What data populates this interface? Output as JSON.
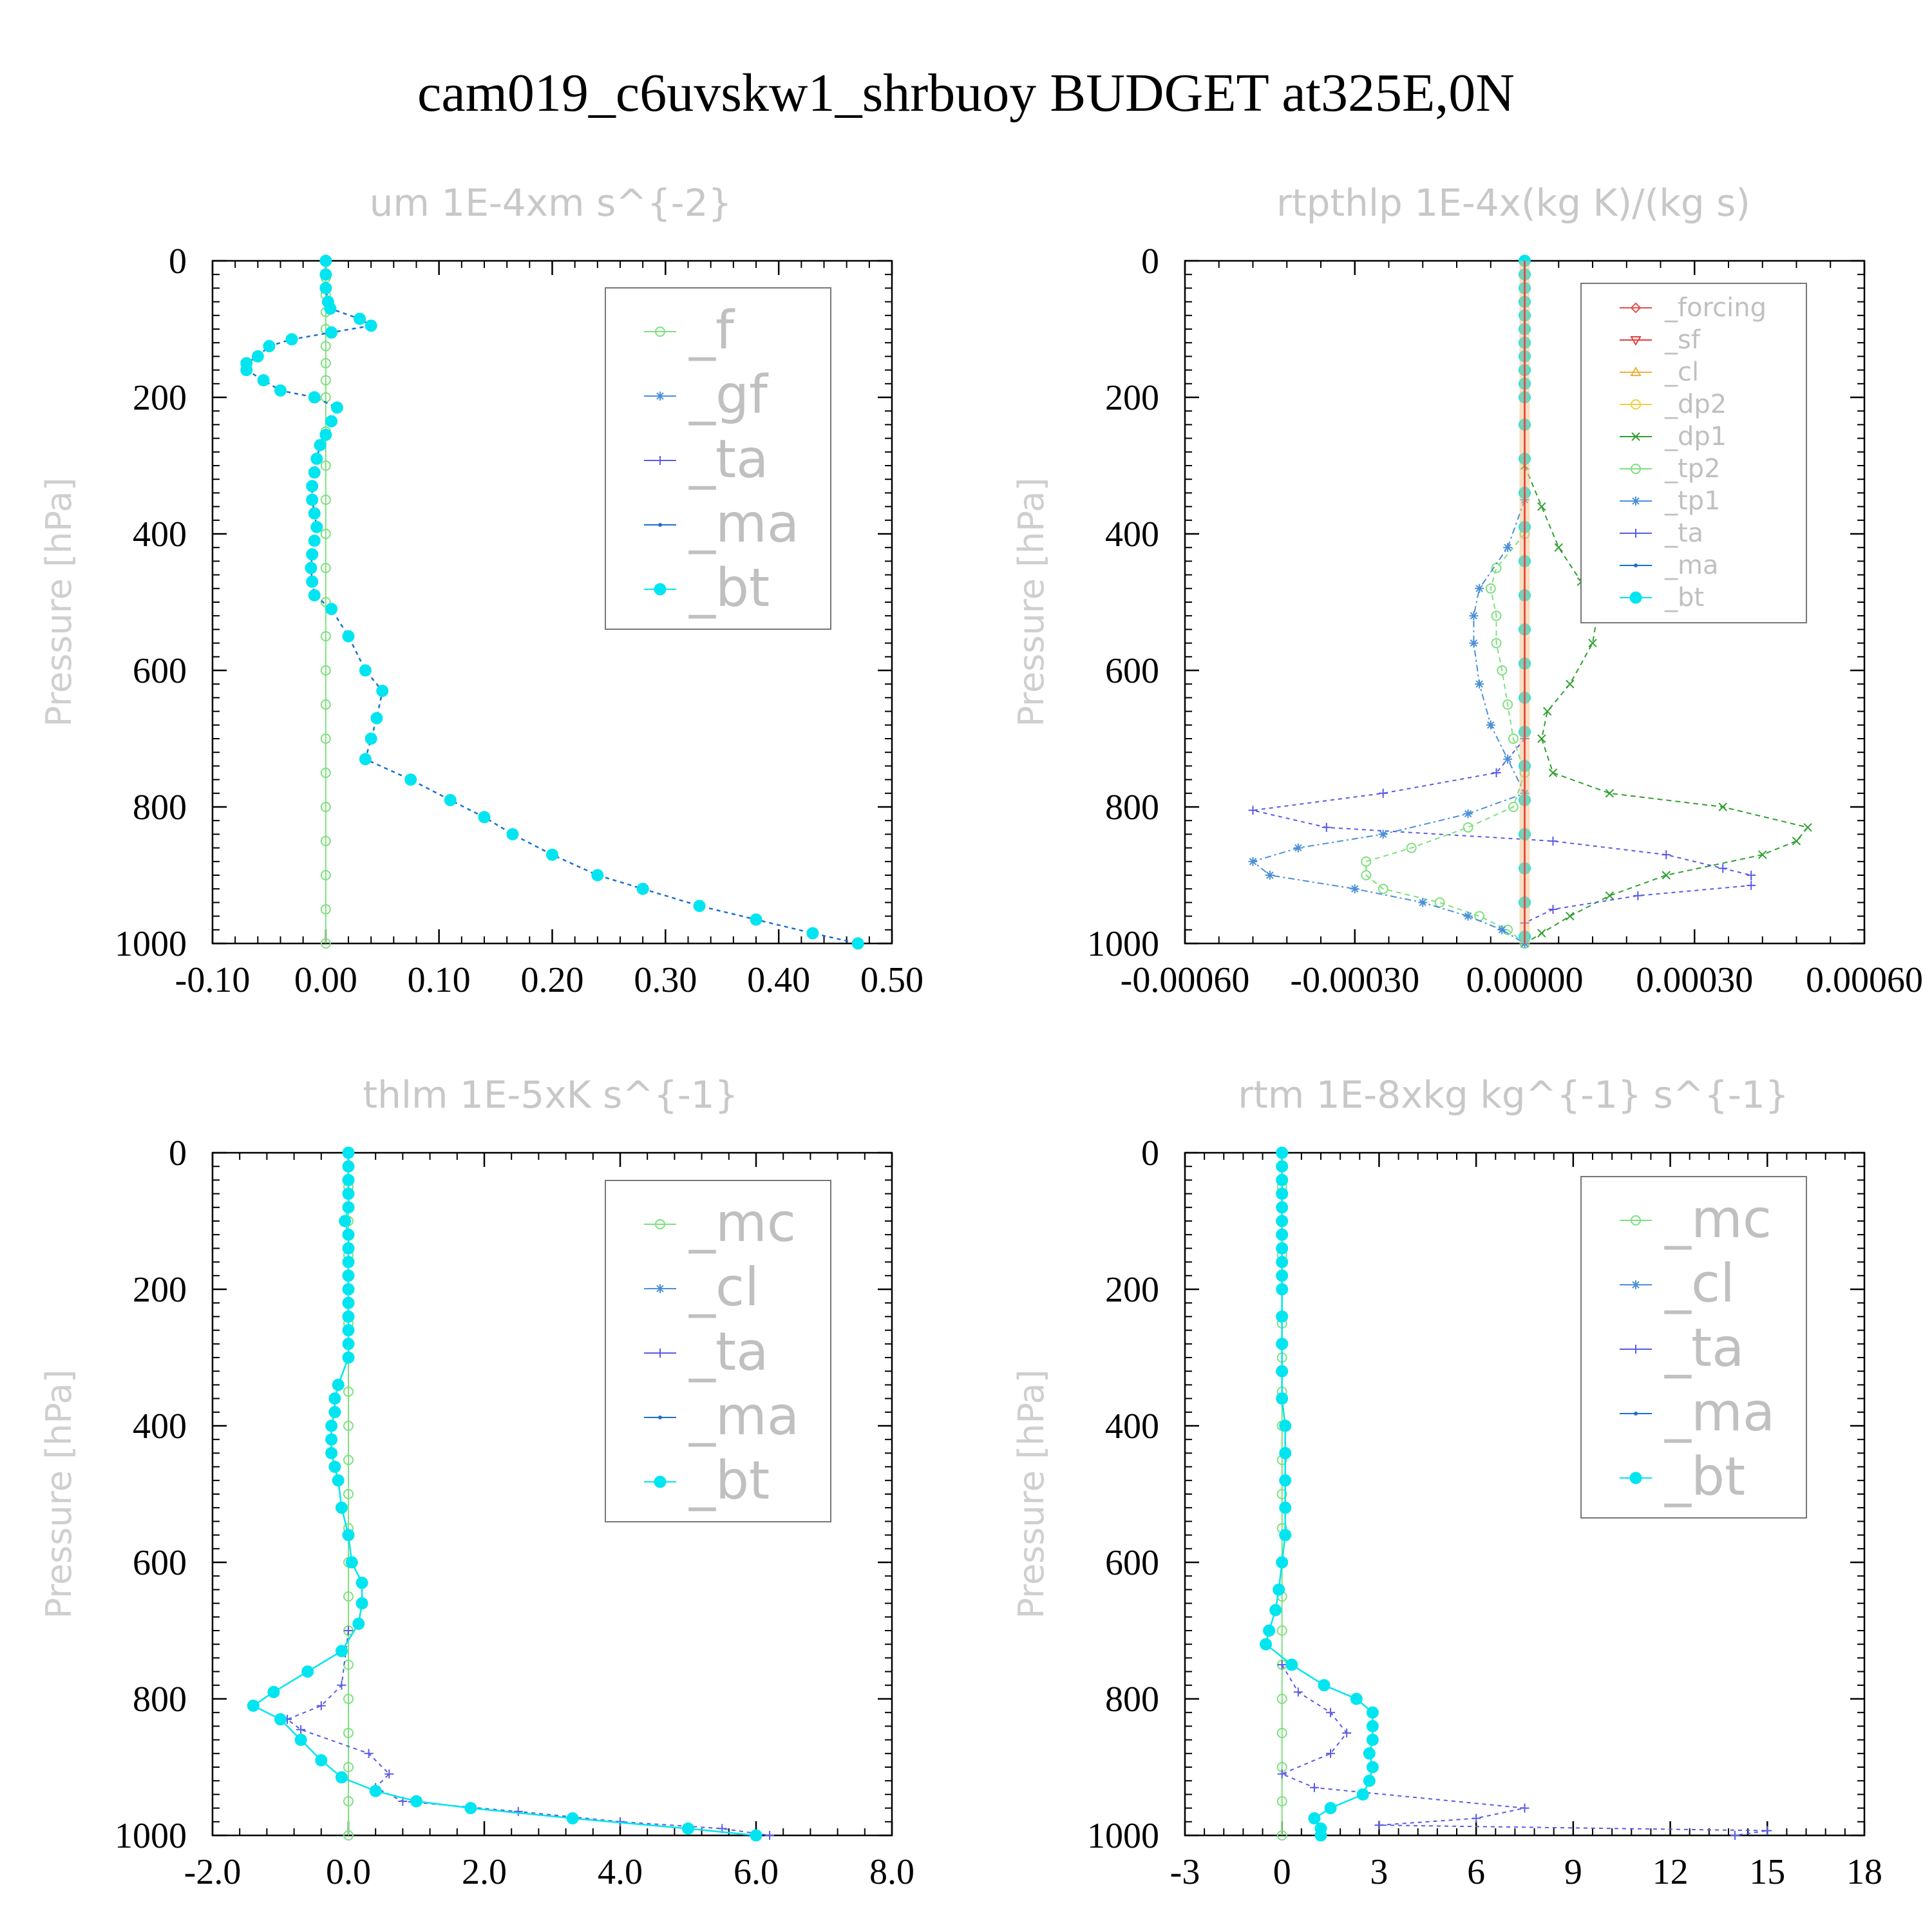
{
  "figure_title": "cam019_c6uvskw1_shrbuoy  BUDGET at325E,0N",
  "chart_data": [
    {
      "type": "line",
      "title": "um  1E-4xm s^{-2}",
      "ylabel": "Pressure [hPa]",
      "xlabel": "",
      "xlim": [
        -0.1,
        0.5
      ],
      "ylim": [
        1000,
        0
      ],
      "xticks": [
        "-0.10",
        "0.00",
        "0.10",
        "0.20",
        "0.30",
        "0.40",
        "0.50"
      ],
      "xtick_values": [
        -0.1,
        0.0,
        0.1,
        0.2,
        0.3,
        0.4,
        0.5
      ],
      "yticks": [
        "0",
        "200",
        "400",
        "600",
        "800",
        "1000"
      ],
      "ytick_values": [
        0,
        200,
        400,
        600,
        800,
        1000
      ],
      "legend_position": "top-right",
      "legend": [
        {
          "label": "_f",
          "color": "#7ee07e",
          "marker": "circle-open"
        },
        {
          "label": "_gf",
          "color": "#4a90d8",
          "marker": "asterisk"
        },
        {
          "label": "_ta",
          "color": "#5a5ae6",
          "marker": "plus"
        },
        {
          "label": "_ma",
          "color": "#1a6fd0",
          "marker": "dot"
        },
        {
          "label": "_bt",
          "color": "#00e5f0",
          "marker": "filled"
        }
      ],
      "series": [
        {
          "name": "_f",
          "color": "#7ee07e",
          "dash": "",
          "marker": "circle-open",
          "p": [
            0,
            25,
            50,
            75,
            100,
            125,
            150,
            175,
            200,
            250,
            300,
            350,
            400,
            450,
            500,
            550,
            600,
            650,
            700,
            750,
            800,
            850,
            900,
            950,
            1000
          ],
          "x": [
            0,
            0,
            0,
            0,
            0,
            0,
            0,
            0,
            0,
            0,
            0,
            0,
            0,
            0,
            0,
            0,
            0,
            0,
            0,
            0,
            0,
            0,
            0,
            0,
            0
          ]
        },
        {
          "name": "_bt",
          "color": "#00e5f0",
          "dash": "6,6",
          "marker": "filled",
          "line_color": "#1a6fd0",
          "p": [
            0,
            20,
            40,
            60,
            70,
            85,
            95,
            105,
            115,
            125,
            140,
            150,
            160,
            175,
            190,
            200,
            215,
            235,
            255,
            270,
            290,
            310,
            330,
            350,
            370,
            390,
            410,
            430,
            450,
            470,
            490,
            510,
            550,
            600,
            630,
            670,
            700,
            730,
            760,
            790,
            815,
            840,
            870,
            900,
            920,
            945,
            965,
            985,
            1000
          ],
          "x": [
            0,
            0,
            0,
            0.002,
            0.004,
            0.03,
            0.04,
            0.005,
            -0.03,
            -0.05,
            -0.06,
            -0.07,
            -0.07,
            -0.055,
            -0.04,
            -0.01,
            0.01,
            0.005,
            0.0,
            -0.005,
            -0.008,
            -0.01,
            -0.012,
            -0.012,
            -0.01,
            -0.008,
            -0.01,
            -0.012,
            -0.013,
            -0.012,
            -0.01,
            0.005,
            0.02,
            0.035,
            0.05,
            0.045,
            0.04,
            0.035,
            0.075,
            0.11,
            0.14,
            0.165,
            0.2,
            0.24,
            0.28,
            0.33,
            0.38,
            0.43,
            0.47
          ]
        }
      ]
    },
    {
      "type": "line",
      "title": "rtpthlp  1E-4x(kg K)/(kg s)",
      "ylabel": "Pressure [hPa]",
      "xlabel": "",
      "xlim": [
        -0.0006,
        0.0006
      ],
      "ylim": [
        1000,
        0
      ],
      "xticks": [
        "-0.00060",
        "-0.00030",
        "0.00000",
        "0.00030",
        "0.00060"
      ],
      "xtick_values": [
        -0.0006,
        -0.0003,
        0.0,
        0.0003,
        0.0006
      ],
      "yticks": [
        "0",
        "200",
        "400",
        "600",
        "800",
        "1000"
      ],
      "ytick_values": [
        0,
        200,
        400,
        600,
        800,
        1000
      ],
      "legend_position": "top-right",
      "legend": [
        {
          "label": "_forcing",
          "color": "#e05050",
          "marker": "diamond-open"
        },
        {
          "label": "_sf",
          "color": "#e04040",
          "marker": "triangle-down"
        },
        {
          "label": "_cl",
          "color": "#f0b040",
          "marker": "triangle-up"
        },
        {
          "label": "_dp2",
          "color": "#f0d040",
          "marker": "circle-open"
        },
        {
          "label": "_dp1",
          "color": "#30a030",
          "marker": "cross"
        },
        {
          "label": "_tp2",
          "color": "#7ee07e",
          "marker": "circle-open"
        },
        {
          "label": "_tp1",
          "color": "#4a90d8",
          "marker": "asterisk"
        },
        {
          "label": "_ta",
          "color": "#5a5ae6",
          "marker": "plus"
        },
        {
          "label": "_ma",
          "color": "#1a6fd0",
          "marker": "dot"
        },
        {
          "label": "_bt",
          "color": "#00e5f0",
          "marker": "filled"
        }
      ],
      "series": [
        {
          "name": "_dp1",
          "color": "#30a030",
          "dash": "8,6",
          "marker": "cross",
          "p": [
            300,
            360,
            420,
            470,
            510,
            560,
            620,
            660,
            700,
            750,
            780,
            800,
            830,
            850,
            870,
            900,
            930,
            960,
            985,
            1000
          ],
          "x": [
            0.0,
            3e-05,
            6e-05,
            0.0001,
            0.00013,
            0.00012,
            8e-05,
            4e-05,
            3e-05,
            5e-05,
            0.00015,
            0.00035,
            0.0005,
            0.00048,
            0.00042,
            0.00025,
            0.00015,
            8e-05,
            3e-05,
            0.0
          ]
        },
        {
          "name": "_ta",
          "color": "#5a5ae6",
          "dash": "6,6",
          "marker": "plus",
          "p": [
            700,
            750,
            780,
            805,
            830,
            850,
            870,
            890,
            900,
            915,
            930,
            950,
            970,
            990,
            1000
          ],
          "x": [
            0.0,
            -5e-05,
            -0.00025,
            -0.00048,
            -0.00035,
            5e-05,
            0.00025,
            0.00035,
            0.0004,
            0.0004,
            0.0002,
            5e-05,
            0.0,
            0.0,
            0.0
          ]
        },
        {
          "name": "_tp2",
          "color": "#7ee07e",
          "dash": "8,6",
          "marker": "circle-open",
          "p": [
            400,
            450,
            480,
            520,
            560,
            600,
            650,
            700,
            750,
            800,
            830,
            860,
            880,
            900,
            920,
            940,
            960,
            980,
            1000
          ],
          "x": [
            0.0,
            -5e-05,
            -6e-05,
            -5e-05,
            -5e-05,
            -4e-05,
            -3e-05,
            -2e-05,
            0.0,
            -2e-05,
            -0.0001,
            -0.0002,
            -0.00028,
            -0.00028,
            -0.00025,
            -0.00015,
            -8e-05,
            -3e-05,
            0.0
          ]
        },
        {
          "name": "_tp1",
          "color": "#4a90d8",
          "dash": "10,5,3,5",
          "marker": "asterisk",
          "p": [
            350,
            420,
            480,
            520,
            560,
            620,
            680,
            730,
            780,
            810,
            840,
            860,
            880,
            900,
            920,
            940,
            960,
            980,
            1000
          ],
          "x": [
            0.0,
            -3e-05,
            -8e-05,
            -9e-05,
            -9e-05,
            -8e-05,
            -6e-05,
            -3e-05,
            0.0,
            -0.0001,
            -0.00025,
            -0.0004,
            -0.00048,
            -0.00045,
            -0.0003,
            -0.00018,
            -0.0001,
            -4e-05,
            0.0
          ]
        },
        {
          "name": "_bt",
          "color": "#00e5f0",
          "dash": "",
          "marker": "filled",
          "line_color": "#e04040",
          "p": [
            0,
            20,
            40,
            60,
            80,
            100,
            120,
            140,
            160,
            180,
            200,
            240,
            290,
            340,
            390,
            440,
            490,
            540,
            590,
            640,
            690,
            740,
            790,
            840,
            890,
            940,
            990
          ],
          "x": [
            0,
            0,
            0,
            0,
            0,
            0,
            0,
            0,
            0,
            0,
            0,
            0,
            0,
            0,
            0,
            0,
            0,
            0,
            0,
            0,
            0,
            0,
            0,
            0,
            0,
            0,
            0
          ]
        }
      ]
    },
    {
      "type": "line",
      "title": "thlm  1E-5xK s^{-1}",
      "ylabel": "Pressure [hPa]",
      "xlabel": "",
      "xlim": [
        -2.0,
        8.0
      ],
      "ylim": [
        1000,
        0
      ],
      "xticks": [
        "-2.0",
        "0.0",
        "2.0",
        "4.0",
        "6.0",
        "8.0"
      ],
      "xtick_values": [
        -2.0,
        0.0,
        2.0,
        4.0,
        6.0,
        8.0
      ],
      "yticks": [
        "0",
        "200",
        "400",
        "600",
        "800",
        "1000"
      ],
      "ytick_values": [
        0,
        200,
        400,
        600,
        800,
        1000
      ],
      "legend_position": "top-right",
      "legend": [
        {
          "label": "_mc",
          "color": "#7ee07e",
          "marker": "circle-open"
        },
        {
          "label": "_cl",
          "color": "#4a90d8",
          "marker": "asterisk"
        },
        {
          "label": "_ta",
          "color": "#5a5ae6",
          "marker": "plus"
        },
        {
          "label": "_ma",
          "color": "#1a6fd0",
          "marker": "dot"
        },
        {
          "label": "_bt",
          "color": "#00e5f0",
          "marker": "filled"
        }
      ],
      "series": [
        {
          "name": "_mc",
          "color": "#7ee07e",
          "dash": "",
          "marker": "circle-open",
          "p": [
            0,
            50,
            100,
            150,
            200,
            250,
            300,
            350,
            400,
            450,
            500,
            550,
            600,
            650,
            700,
            750,
            800,
            850,
            900,
            950,
            1000
          ],
          "x": [
            0,
            0,
            0,
            0,
            0,
            0,
            0,
            0,
            0,
            0,
            0,
            0,
            0,
            0,
            0,
            0,
            0,
            0,
            0,
            0,
            0
          ]
        },
        {
          "name": "_ta",
          "color": "#5a5ae6",
          "dash": "6,6",
          "marker": "plus",
          "p": [
            700,
            780,
            810,
            830,
            845,
            880,
            910,
            930,
            950,
            965,
            980,
            990,
            1000
          ],
          "x": [
            0.0,
            -0.1,
            -0.4,
            -0.9,
            -0.7,
            0.3,
            0.6,
            0.4,
            0.8,
            2.5,
            4.0,
            5.5,
            6.2
          ]
        },
        {
          "name": "_bt",
          "color": "#00e5f0",
          "dash": "",
          "marker": "filled",
          "line_color": "#00e5f0",
          "p": [
            0,
            20,
            40,
            60,
            80,
            100,
            120,
            140,
            160,
            180,
            200,
            220,
            240,
            260,
            280,
            300,
            340,
            360,
            380,
            400,
            420,
            440,
            460,
            480,
            520,
            560,
            600,
            630,
            660,
            690,
            730,
            760,
            790,
            810,
            830,
            860,
            890,
            915,
            935,
            950,
            960,
            975,
            990,
            1000
          ],
          "x": [
            0,
            0,
            0,
            0,
            0,
            -0.05,
            0,
            0,
            0,
            0,
            0,
            0,
            0,
            0,
            0,
            0,
            -0.15,
            -0.2,
            -0.2,
            -0.25,
            -0.25,
            -0.25,
            -0.2,
            -0.15,
            -0.1,
            0,
            0.05,
            0.2,
            0.2,
            0.15,
            -0.1,
            -0.6,
            -1.1,
            -1.4,
            -1.0,
            -0.7,
            -0.4,
            -0.1,
            0.4,
            1.0,
            1.8,
            3.3,
            5.0,
            6.0
          ]
        }
      ]
    },
    {
      "type": "line",
      "title": "rtm  1E-8xkg kg^{-1} s^{-1}",
      "ylabel": "Pressure [hPa]",
      "xlabel": "",
      "xlim": [
        -3,
        18
      ],
      "ylim": [
        1000,
        0
      ],
      "xticks": [
        "-3",
        "0",
        "3",
        "6",
        "9",
        "12",
        "15",
        "18"
      ],
      "xtick_values": [
        -3,
        0,
        3,
        6,
        9,
        12,
        15,
        18
      ],
      "yticks": [
        "0",
        "200",
        "400",
        "600",
        "800",
        "1000"
      ],
      "ytick_values": [
        0,
        200,
        400,
        600,
        800,
        1000
      ],
      "legend_position": "top-right",
      "legend": [
        {
          "label": "_mc",
          "color": "#7ee07e",
          "marker": "circle-open"
        },
        {
          "label": "_cl",
          "color": "#4a90d8",
          "marker": "asterisk"
        },
        {
          "label": "_ta",
          "color": "#5a5ae6",
          "marker": "plus"
        },
        {
          "label": "_ma",
          "color": "#1a6fd0",
          "marker": "dot"
        },
        {
          "label": "_bt",
          "color": "#00e5f0",
          "marker": "filled"
        }
      ],
      "series": [
        {
          "name": "_mc",
          "color": "#7ee07e",
          "dash": "",
          "marker": "circle-open",
          "p": [
            0,
            50,
            100,
            150,
            200,
            250,
            300,
            350,
            400,
            450,
            500,
            550,
            600,
            650,
            700,
            750,
            800,
            850,
            900,
            950,
            1000
          ],
          "x": [
            0,
            0,
            0,
            0,
            0,
            0,
            0,
            0,
            0,
            0,
            0,
            0,
            0,
            0,
            0,
            0,
            0,
            0,
            0,
            0,
            0
          ]
        },
        {
          "name": "_ta",
          "color": "#5a5ae6",
          "dash": "6,6",
          "marker": "plus",
          "p": [
            750,
            790,
            820,
            850,
            880,
            910,
            930,
            960,
            975,
            985,
            993,
            1000
          ],
          "x": [
            0.0,
            0.5,
            1.5,
            2.0,
            1.5,
            0.0,
            1.0,
            7.5,
            6.0,
            3.0,
            15.0,
            14.0
          ]
        },
        {
          "name": "_bt",
          "color": "#00e5f0",
          "dash": "",
          "marker": "filled",
          "line_color": "#00e5f0",
          "p": [
            0,
            20,
            40,
            60,
            80,
            100,
            120,
            140,
            160,
            180,
            200,
            240,
            280,
            320,
            360,
            400,
            440,
            480,
            520,
            560,
            600,
            640,
            670,
            700,
            720,
            750,
            780,
            800,
            820,
            840,
            860,
            880,
            900,
            920,
            940,
            960,
            975,
            990,
            1000
          ],
          "x": [
            0,
            0,
            0,
            0,
            0,
            0,
            0,
            0,
            0,
            0,
            0,
            0,
            0,
            0,
            0,
            0.1,
            0.1,
            0.1,
            0.1,
            0.1,
            0,
            -0.1,
            -0.2,
            -0.4,
            -0.5,
            0.3,
            1.3,
            2.3,
            2.8,
            2.8,
            2.8,
            2.7,
            2.8,
            2.7,
            2.5,
            1.5,
            1.0,
            1.2,
            1.2
          ]
        }
      ]
    }
  ]
}
